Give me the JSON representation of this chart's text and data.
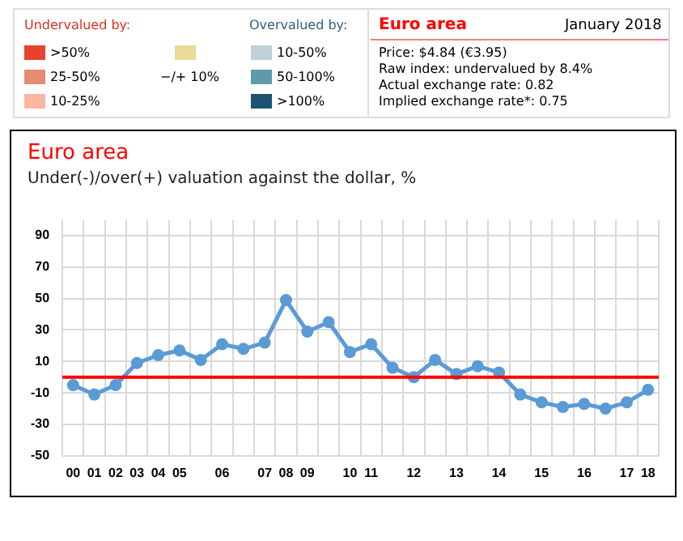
{
  "chart_data": {
    "type": "line",
    "title": "Euro area",
    "subtitle": "Under(-)/over(+) valuation against the dollar, %",
    "categories": [
      "00",
      "01",
      "02",
      "03",
      "04",
      "05",
      null,
      "06",
      null,
      "07",
      "08",
      "09",
      null,
      "10",
      "11",
      null,
      "12",
      null,
      "13",
      null,
      "14",
      null,
      "15",
      null,
      "16",
      null,
      "17",
      "18"
    ],
    "series": [
      {
        "color": "#5b9bd5",
        "values": [
          -5,
          -11,
          -5,
          9,
          14,
          17,
          11,
          21,
          18,
          22,
          49,
          29,
          35,
          16,
          21,
          6,
          0,
          11,
          2,
          7,
          3,
          -11,
          -16,
          -19,
          -17,
          -20,
          -16,
          -8
        ]
      }
    ],
    "ylim": [
      -50,
      100
    ],
    "yticks": [
      -50,
      -30,
      -10,
      10,
      30,
      50,
      70,
      90
    ],
    "grid": true,
    "legend": false,
    "marker": "circle",
    "line_style": "solid",
    "ref_lines": [
      {
        "axis": "y",
        "value": 0,
        "color": "#ff0000"
      }
    ],
    "annotations": [
      "Undervalued by:",
      ">50%",
      "25-50%",
      "10-25%",
      "−/+ 10%",
      "Overvalued by:",
      "10-50%",
      "50-100%",
      ">100%",
      "Euro area",
      "January 2018",
      "Price: $4.84 (€3.95)",
      "Raw index: undervalued by 8.4%",
      "Actual exchange rate: 0.82",
      "Implied exchange rate*: 0.75"
    ]
  }
}
